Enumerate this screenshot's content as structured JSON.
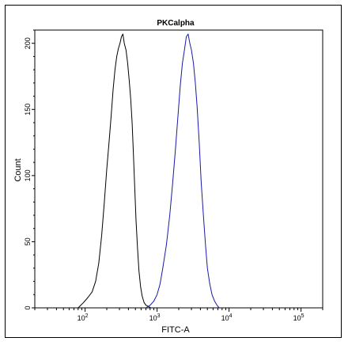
{
  "chart_data": {
    "type": "line",
    "title": "PKCalpha",
    "xlabel": "FITC-A",
    "ylabel": "Count",
    "x_scale": "log",
    "xlim": [
      20,
      200000
    ],
    "ylim": [
      0,
      210
    ],
    "y_ticks": [
      0,
      50,
      100,
      150,
      200
    ],
    "y_tick_labels": [
      "0",
      "50",
      "100",
      "150",
      "200"
    ],
    "x_ticks": [
      100,
      1000,
      10000,
      100000
    ],
    "x_tick_labels": [
      {
        "base": "10",
        "exp": "2"
      },
      {
        "base": "10",
        "exp": "3"
      },
      {
        "base": "10",
        "exp": "4"
      },
      {
        "base": "10",
        "exp": "5"
      }
    ],
    "grid": false,
    "series": [
      {
        "color": "#000000",
        "x": [
          80,
          95,
          110,
          125,
          140,
          155,
          170,
          185,
          200,
          215,
          230,
          245,
          260,
          275,
          290,
          305,
          320,
          335,
          350,
          370,
          390,
          410,
          430,
          450,
          470,
          490,
          510,
          535,
          560,
          590,
          620,
          660,
          700,
          760,
          820
        ],
        "y": [
          0,
          4,
          8,
          12,
          20,
          34,
          55,
          80,
          105,
          125,
          145,
          165,
          180,
          190,
          196,
          200,
          205,
          207,
          200,
          195,
          185,
          172,
          158,
          140,
          115,
          90,
          66,
          45,
          28,
          16,
          9,
          4,
          2,
          1,
          0
        ]
      },
      {
        "color": "#1a1aa8",
        "x": [
          700,
          800,
          900,
          1000,
          1100,
          1200,
          1350,
          1500,
          1650,
          1800,
          1950,
          2100,
          2250,
          2400,
          2550,
          2700,
          2850,
          3000,
          3200,
          3400,
          3600,
          3850,
          4100,
          4400,
          4700,
          5000,
          5400,
          5800,
          6300,
          6800,
          7300
        ],
        "y": [
          0,
          2,
          5,
          10,
          18,
          30,
          48,
          70,
          95,
          120,
          145,
          168,
          185,
          195,
          205,
          207,
          200,
          195,
          185,
          170,
          152,
          125,
          95,
          70,
          48,
          30,
          18,
          10,
          5,
          2,
          0
        ]
      }
    ]
  }
}
